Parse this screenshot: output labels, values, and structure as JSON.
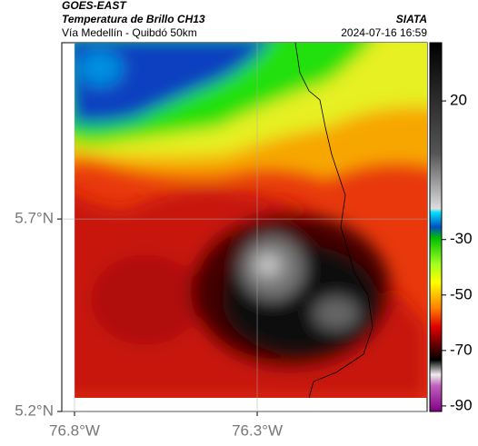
{
  "header": {
    "satellite": "GOES-EAST",
    "product": "Temperatura de Brillo CH13",
    "region": "Vía Medellín - Quibdó 50km",
    "source": "SIATA",
    "datetime": "2024-07-16 16:59"
  },
  "map": {
    "xlim": [
      -76.8,
      -75.835
    ],
    "ylim": [
      5.2,
      6.158
    ],
    "xticks": [
      {
        "value": -76.8,
        "label": "76.8°W"
      },
      {
        "value": -76.3,
        "label": "76.3°W"
      }
    ],
    "yticks": [
      {
        "value": 5.2,
        "label": "5.2°N"
      },
      {
        "value": 5.7,
        "label": "5.7°N"
      }
    ],
    "grid": true
  },
  "colorbar": {
    "clim": [
      -92,
      41
    ],
    "ticks": [
      20,
      -30,
      -50,
      -70,
      -90
    ]
  }
}
